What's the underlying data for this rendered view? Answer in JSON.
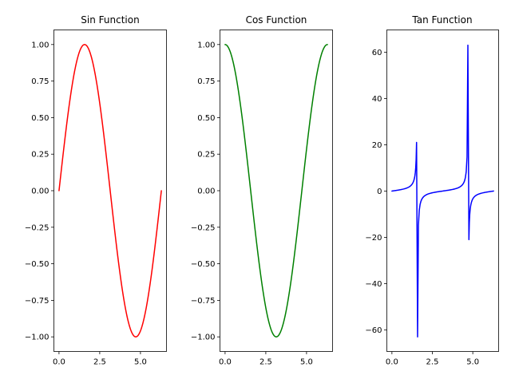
{
  "chart_data": [
    {
      "type": "line",
      "title": "Sin Function",
      "xlabel": "",
      "ylabel": "",
      "function": "sin",
      "x_range": [
        0,
        6.283
      ],
      "xlim": [
        -0.314,
        6.597
      ],
      "ylim": [
        -1.1,
        1.1
      ],
      "xticks": [
        0,
        2.5,
        5
      ],
      "xtick_labels": [
        "0.0",
        "2.5",
        "5.0"
      ],
      "yticks": [
        1,
        0.75,
        0.5,
        0.25,
        0,
        -0.25,
        -0.5,
        -0.75,
        -1
      ],
      "ytick_labels": [
        "1.00",
        "0.75",
        "0.50",
        "0.25",
        "0.00",
        "−0.25",
        "−0.50",
        "−0.75",
        "−1.00"
      ],
      "color": "#ff0000",
      "grid": false,
      "legend": "none"
    },
    {
      "type": "line",
      "title": "Cos Function",
      "xlabel": "",
      "ylabel": "",
      "function": "cos",
      "x_range": [
        0,
        6.283
      ],
      "xlim": [
        -0.314,
        6.597
      ],
      "ylim": [
        -1.1,
        1.1
      ],
      "xticks": [
        0,
        2.5,
        5
      ],
      "xtick_labels": [
        "0.0",
        "2.5",
        "5.0"
      ],
      "yticks": [
        1,
        0.75,
        0.5,
        0.25,
        0,
        -0.25,
        -0.5,
        -0.75,
        -1
      ],
      "ytick_labels": [
        "1.00",
        "0.75",
        "0.50",
        "0.25",
        "0.00",
        "−0.25",
        "−0.50",
        "−0.75",
        "−1.00"
      ],
      "color": "#008000",
      "grid": false,
      "legend": "none"
    },
    {
      "type": "line",
      "title": "Tan Function",
      "xlabel": "",
      "ylabel": "",
      "function": "tan",
      "x_range": [
        0,
        6.283
      ],
      "xlim": [
        -0.314,
        6.597
      ],
      "ylim": [
        -69.3,
        69.6
      ],
      "xticks": [
        0,
        2.5,
        5
      ],
      "xtick_labels": [
        "0.0",
        "2.5",
        "5.0"
      ],
      "yticks": [
        60,
        40,
        20,
        0,
        -20,
        -40,
        -60
      ],
      "ytick_labels": [
        "60",
        "40",
        "20",
        "0",
        "−20",
        "−40",
        "−60"
      ],
      "color": "#0000ff",
      "peaks": [
        {
          "x": 1.571,
          "y_max": 21,
          "y_min": -63
        },
        {
          "x": 4.712,
          "y_max": 63,
          "y_min": -21
        }
      ],
      "grid": false,
      "legend": "none"
    }
  ]
}
